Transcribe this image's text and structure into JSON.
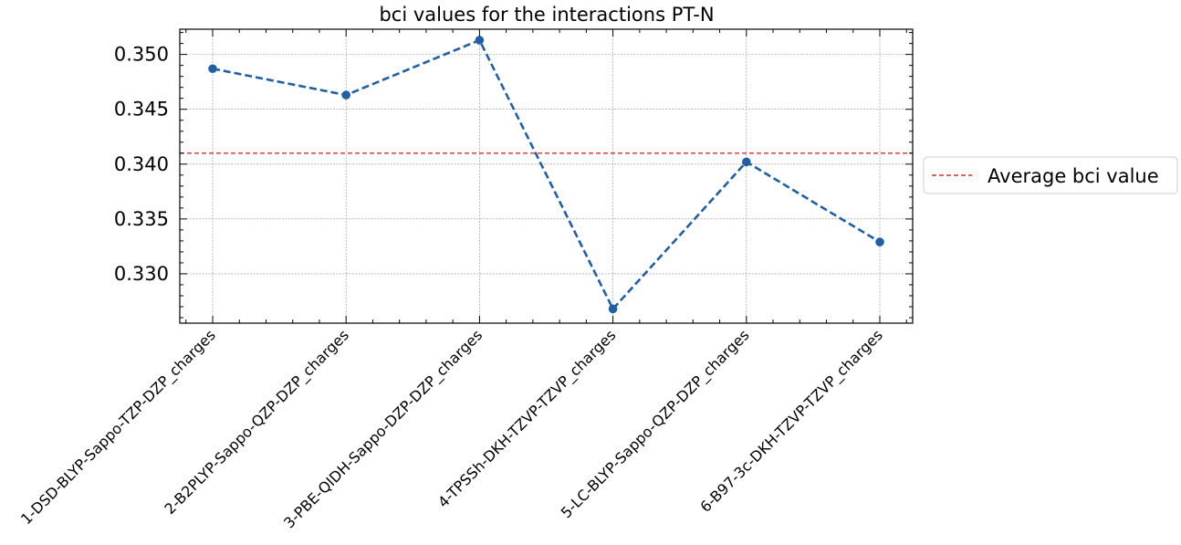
{
  "chart_data": {
    "type": "line",
    "title": "bci values for the interactions PT-N",
    "xlabel": "",
    "ylabel": "",
    "categories": [
      "1-DSD-BLYP-Sappo-TZP-DZP_charges",
      "2-B2PLYP-Sappo-QZP-DZP_charges",
      "3-PBE-QIDH-Sappo-DZP-DZP_charges",
      "4-TPSSh-DKH-TZVP-TZVP_charges",
      "5-LC-BLYP-Sappo-QZP-DZP_charges",
      "6-B97-3c-DKH-TZVP-TZVP_charges"
    ],
    "series": [
      {
        "values": [
          0.3487,
          0.3463,
          0.3513,
          0.3268,
          0.3402,
          0.3329
        ],
        "color": "#1f5fa5",
        "line_style": "dashed",
        "marker": "circle"
      }
    ],
    "average_line": {
      "name": "Average bci value",
      "value": 0.341,
      "color": "#e8281e",
      "line_style": "dashed"
    },
    "ylim": [
      0.3255,
      0.3523
    ],
    "yticks": [
      "0.330",
      "0.335",
      "0.340",
      "0.345",
      "0.350"
    ],
    "ytick_values": [
      0.33,
      0.335,
      0.34,
      0.345,
      0.35
    ],
    "grid": true,
    "legend_position": "outside-right"
  }
}
